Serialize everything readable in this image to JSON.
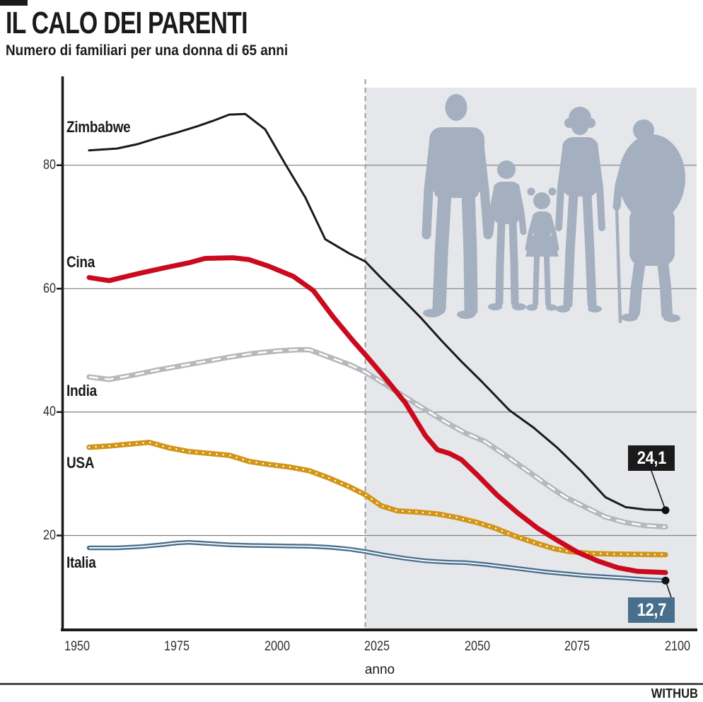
{
  "header": {
    "title": "IL CALO DEI PARENTI",
    "subtitle": "Numero di familiari per una donna di 65 anni"
  },
  "footer": {
    "brand": "WITHUB"
  },
  "chart_data": {
    "type": "line",
    "title": "IL CALO DEI PARENTI",
    "subtitle": "Numero di familiari per una donna di 65 anni",
    "xlabel": "anno",
    "ylabel": "",
    "x_ticks": [
      1950,
      1975,
      2000,
      2025,
      2050,
      2075,
      2100
    ],
    "y_ticks": [
      80,
      60,
      40,
      20
    ],
    "xlim": [
      1946,
      2105
    ],
    "ylim": [
      4.7,
      94.2
    ],
    "grid": "horizontal",
    "legend_position": "inline-left",
    "projection_from": 2022,
    "colors": {
      "zimbabwe": "#1a1a1a",
      "cina": "#cb0a1e",
      "india": "#b5b8bc",
      "usa": "#d29517",
      "italia": "#48708e",
      "projection_shade": "#e5e7ea",
      "silhouette": "#a4afbf",
      "grid": "#808080"
    },
    "series": [
      {
        "name": "Zimbabwe",
        "color": "#1a1a1a",
        "width": 3,
        "inner": "none",
        "points": [
          [
            1953,
            82.4
          ],
          [
            1960,
            82.7
          ],
          [
            1965,
            83.4
          ],
          [
            1970,
            84.4
          ],
          [
            1975,
            85.3
          ],
          [
            1980,
            86.3
          ],
          [
            1984,
            87.2
          ],
          [
            1988,
            88.2
          ],
          [
            1992,
            88.3
          ],
          [
            1997,
            85.8
          ],
          [
            2002,
            80.2
          ],
          [
            2007,
            74.8
          ],
          [
            2012,
            68
          ],
          [
            2018,
            65.7
          ],
          [
            2022,
            64.4
          ],
          [
            2026,
            61.7
          ],
          [
            2031,
            58.5
          ],
          [
            2036,
            55.2
          ],
          [
            2041,
            51.6
          ],
          [
            2046,
            48.2
          ],
          [
            2051,
            45
          ],
          [
            2058,
            40.3
          ],
          [
            2064,
            37.5
          ],
          [
            2070,
            34.2
          ],
          [
            2076,
            30.4
          ],
          [
            2082,
            26.2
          ],
          [
            2087,
            24.6
          ],
          [
            2092,
            24.2
          ],
          [
            2097,
            24.1
          ]
        ]
      },
      {
        "name": "Cina",
        "color": "#cb0a1e",
        "width": 7,
        "inner": "none",
        "points": [
          [
            1953,
            61.8
          ],
          [
            1958,
            61.3
          ],
          [
            1965,
            62.4
          ],
          [
            1972,
            63.4
          ],
          [
            1978,
            64.2
          ],
          [
            1982,
            64.9
          ],
          [
            1989,
            65
          ],
          [
            1993,
            64.7
          ],
          [
            1998,
            63.6
          ],
          [
            2004,
            62
          ],
          [
            2009,
            59.7
          ],
          [
            2014,
            55.4
          ],
          [
            2019,
            51.5
          ],
          [
            2022,
            49.3
          ],
          [
            2027,
            45.5
          ],
          [
            2032,
            41.5
          ],
          [
            2037,
            36.2
          ],
          [
            2040,
            33.9
          ],
          [
            2043,
            33.3
          ],
          [
            2046,
            32.3
          ],
          [
            2050,
            29.8
          ],
          [
            2055,
            26.5
          ],
          [
            2060,
            23.7
          ],
          [
            2065,
            21.2
          ],
          [
            2070,
            19.2
          ],
          [
            2075,
            17.3
          ],
          [
            2080,
            15.9
          ],
          [
            2085,
            14.8
          ],
          [
            2090,
            14.2
          ],
          [
            2097,
            14
          ]
        ]
      },
      {
        "name": "India",
        "color": "#b5b8bc",
        "width": 7.5,
        "inner": "dash",
        "points": [
          [
            1953,
            45.7
          ],
          [
            1958,
            45.3
          ],
          [
            1964,
            46
          ],
          [
            1970,
            46.8
          ],
          [
            1976,
            47.5
          ],
          [
            1982,
            48.2
          ],
          [
            1988,
            48.9
          ],
          [
            1994,
            49.5
          ],
          [
            2000,
            49.9
          ],
          [
            2005,
            50.1
          ],
          [
            2008,
            50.1
          ],
          [
            2013,
            48.9
          ],
          [
            2018,
            47.7
          ],
          [
            2022,
            46.5
          ],
          [
            2027,
            44.5
          ],
          [
            2032,
            42.4
          ],
          [
            2037,
            40.4
          ],
          [
            2042,
            38.4
          ],
          [
            2047,
            36.6
          ],
          [
            2052,
            35.2
          ],
          [
            2057,
            33
          ],
          [
            2062,
            30.7
          ],
          [
            2067,
            28.4
          ],
          [
            2072,
            26.2
          ],
          [
            2077,
            24.6
          ],
          [
            2082,
            23
          ],
          [
            2087,
            22.1
          ],
          [
            2092,
            21.6
          ],
          [
            2097,
            21.4
          ]
        ]
      },
      {
        "name": "USA",
        "color": "#d29517",
        "width": 7.5,
        "inner": "dot",
        "points": [
          [
            1953,
            34.3
          ],
          [
            1958,
            34.5
          ],
          [
            1963,
            34.8
          ],
          [
            1968,
            35.1
          ],
          [
            1973,
            34.2
          ],
          [
            1978,
            33.6
          ],
          [
            1983,
            33.3
          ],
          [
            1988,
            33
          ],
          [
            1993,
            32
          ],
          [
            1998,
            31.5
          ],
          [
            2003,
            31.1
          ],
          [
            2008,
            30.5
          ],
          [
            2013,
            29.3
          ],
          [
            2018,
            27.9
          ],
          [
            2022,
            26.6
          ],
          [
            2026,
            24.8
          ],
          [
            2030,
            24
          ],
          [
            2035,
            23.8
          ],
          [
            2040,
            23.5
          ],
          [
            2045,
            22.9
          ],
          [
            2050,
            22.1
          ],
          [
            2054,
            21.3
          ],
          [
            2059,
            20
          ],
          [
            2064,
            18.9
          ],
          [
            2069,
            17.9
          ],
          [
            2073,
            17.4
          ],
          [
            2078,
            17.1
          ],
          [
            2084,
            17
          ],
          [
            2090,
            16.95
          ],
          [
            2097,
            16.9
          ]
        ]
      },
      {
        "name": "Italia",
        "color": "#48708e",
        "width": 6.5,
        "inner": "line",
        "points": [
          [
            1953,
            18
          ],
          [
            1960,
            18
          ],
          [
            1966,
            18.2
          ],
          [
            1971,
            18.5
          ],
          [
            1975,
            18.8
          ],
          [
            1978,
            18.9
          ],
          [
            1983,
            18.7
          ],
          [
            1988,
            18.5
          ],
          [
            1993,
            18.4
          ],
          [
            1998,
            18.35
          ],
          [
            2003,
            18.3
          ],
          [
            2008,
            18.25
          ],
          [
            2013,
            18.1
          ],
          [
            2018,
            17.8
          ],
          [
            2022,
            17.4
          ],
          [
            2027,
            16.8
          ],
          [
            2032,
            16.3
          ],
          [
            2037,
            15.9
          ],
          [
            2042,
            15.7
          ],
          [
            2047,
            15.6
          ],
          [
            2052,
            15.3
          ],
          [
            2057,
            14.9
          ],
          [
            2062,
            14.5
          ],
          [
            2067,
            14.1
          ],
          [
            2072,
            13.8
          ],
          [
            2077,
            13.5
          ],
          [
            2082,
            13.3
          ],
          [
            2087,
            13.1
          ],
          [
            2092,
            12.85
          ],
          [
            2097,
            12.7
          ]
        ]
      }
    ],
    "annotations": [
      {
        "series": "Zimbabwe",
        "text": "24,1",
        "value": 24.1,
        "year": 2097
      },
      {
        "series": "Italia",
        "text": "12,7",
        "value": 12.7,
        "year": 2097
      }
    ]
  }
}
